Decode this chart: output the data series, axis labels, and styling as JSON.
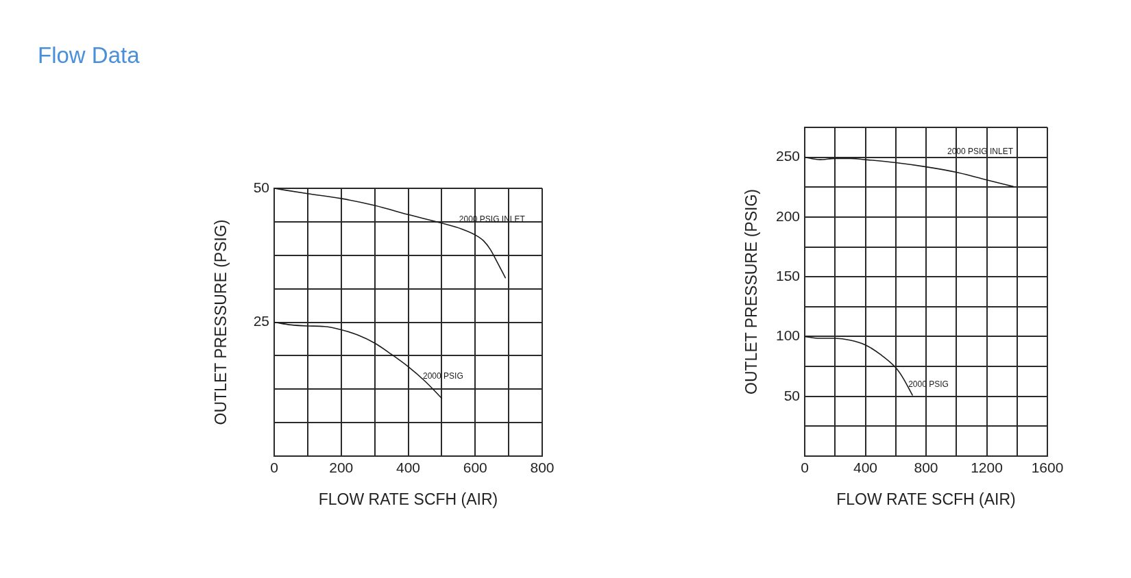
{
  "chart_data": [
    {
      "type": "line",
      "title": "Flow Data",
      "xlabel": "FLOW RATE SCFH (AIR)",
      "ylabel": "OUTLET PRESSURE (PSIG)",
      "xlim": [
        0,
        800
      ],
      "ylim": [
        0,
        50
      ],
      "xticks": [
        0,
        {
          "value": 100,
          "label": null
        },
        200,
        {
          "value": 300,
          "label": null
        },
        400,
        {
          "value": 500,
          "label": null
        },
        600,
        {
          "value": 700,
          "label": null
        },
        800
      ],
      "yticks": [
        {
          "value": 0,
          "label": null
        },
        {
          "value": 6.25,
          "label": null
        },
        {
          "value": 12.5,
          "label": null
        },
        {
          "value": 18.75,
          "label": null
        },
        25,
        {
          "value": 31.25,
          "label": null
        },
        {
          "value": 37.5,
          "label": null
        },
        {
          "value": 43.75,
          "label": null
        },
        50
      ],
      "grid": true,
      "marker": "none",
      "line_style": "solid",
      "series": [
        {
          "name": "2000 PSIG INLET",
          "color": "#1a1a1a",
          "x": [
            0,
            100,
            200,
            300,
            400,
            500,
            560,
            600,
            625,
            645,
            665,
            690
          ],
          "values": [
            50,
            49,
            48.1,
            46.8,
            45.1,
            43.5,
            42.4,
            41.3,
            40.2,
            38.6,
            36.3,
            33.3
          ]
        },
        {
          "name": "2000 PSIG",
          "color": "#1a1a1a",
          "x": [
            0,
            50,
            100,
            150,
            200,
            250,
            300,
            350,
            400,
            450,
            500
          ],
          "values": [
            25,
            24.5,
            24.3,
            24.2,
            23.6,
            22.6,
            21.1,
            19,
            16.7,
            14,
            10.8
          ]
        }
      ]
    },
    {
      "type": "line",
      "xlabel": "FLOW RATE SCFH (AIR)",
      "ylabel": "OUTLET PRESSURE (PSIG)",
      "xlim": [
        0,
        1600
      ],
      "ylim": [
        0,
        275
      ],
      "xticks": [
        0,
        {
          "value": 200,
          "label": null
        },
        400,
        {
          "value": 600,
          "label": null
        },
        800,
        {
          "value": 1000,
          "label": null
        },
        1200,
        {
          "value": 1400,
          "label": null
        },
        1600
      ],
      "yticks": [
        {
          "value": 0,
          "label": null
        },
        {
          "value": 25,
          "label": null
        },
        50,
        {
          "value": 75,
          "label": null
        },
        100,
        {
          "value": 125,
          "label": null
        },
        150,
        {
          "value": 175,
          "label": null
        },
        200,
        {
          "value": 225,
          "label": null
        },
        250,
        {
          "value": 275,
          "label": null
        }
      ],
      "grid": true,
      "marker": "none",
      "line_style": "solid",
      "series": [
        {
          "name": "2000 PSIG INLET",
          "color": "#1a1a1a",
          "x": [
            0,
            100,
            200,
            300,
            400,
            600,
            800,
            1000,
            1200,
            1375
          ],
          "values": [
            250,
            248,
            249,
            249,
            248,
            245.5,
            242,
            237.5,
            231,
            225.5
          ]
        },
        {
          "name": "2000 PSIG",
          "color": "#1a1a1a",
          "x": [
            0,
            100,
            200,
            300,
            400,
            500,
            600,
            650,
            710
          ],
          "values": [
            100,
            98.5,
            98.5,
            97,
            93,
            85,
            74,
            65,
            51
          ]
        }
      ]
    }
  ]
}
